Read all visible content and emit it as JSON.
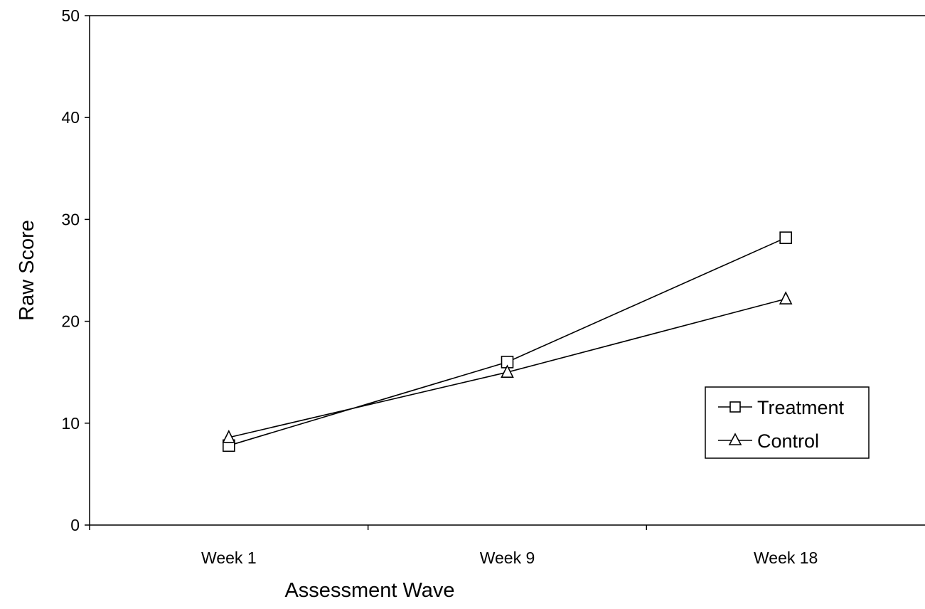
{
  "chart_data": {
    "type": "line",
    "title": "",
    "xlabel": "Assessment Wave",
    "ylabel": "Raw Score",
    "categories": [
      "Week 1",
      "Week 9",
      "Week 18"
    ],
    "ylim": [
      0,
      50
    ],
    "yticks": [
      "0",
      "10",
      "20",
      "30",
      "40",
      "50"
    ],
    "grid": false,
    "legend_position": "lower-right",
    "series": [
      {
        "name": "Treatment",
        "marker": "square",
        "values": [
          7.8,
          16.0,
          28.2
        ]
      },
      {
        "name": "Control",
        "marker": "triangle",
        "values": [
          8.6,
          15.0,
          22.2
        ]
      }
    ]
  }
}
